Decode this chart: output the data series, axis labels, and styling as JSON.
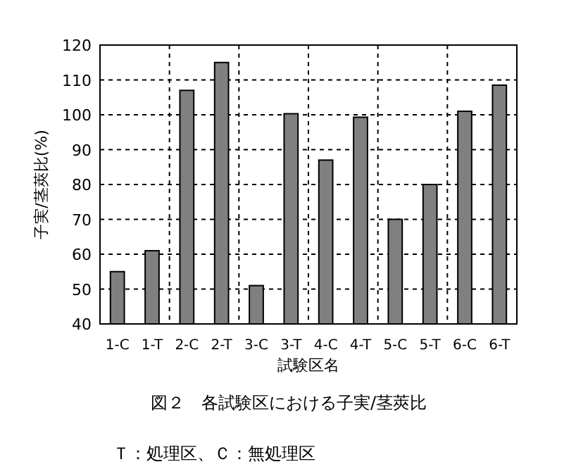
{
  "chart_data": {
    "type": "bar",
    "title": "図２　各試験区における子実/茎莢比",
    "xlabel": "試験区名",
    "ylabel": "子実/茎莢比(%)",
    "categories": [
      "1-C",
      "1-T",
      "2-C",
      "2-T",
      "3-C",
      "3-T",
      "4-C",
      "4-T",
      "5-C",
      "5-T",
      "6-C",
      "6-T"
    ],
    "values": [
      55,
      61,
      107,
      115,
      51,
      100.3,
      87,
      99.3,
      70,
      80,
      101,
      108.5
    ],
    "color": "#808080",
    "ylim": [
      40,
      120
    ],
    "yticks": [
      40,
      50,
      60,
      70,
      80,
      90,
      100,
      110,
      120
    ],
    "grid": true,
    "line_style": "dashed",
    "annotations": [
      "Ｔ：処理区、Ｃ：無処理区"
    ]
  }
}
